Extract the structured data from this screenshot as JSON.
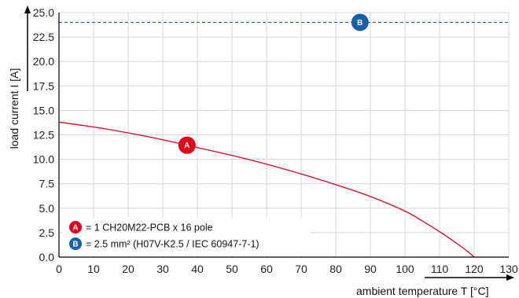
{
  "chart_data": {
    "type": "line",
    "xlabel": "ambient temperature T [°C]",
    "ylabel": "load current I [A]",
    "xlim": [
      0,
      130
    ],
    "ylim": [
      0,
      25
    ],
    "x_ticks": [
      0,
      10,
      20,
      30,
      40,
      50,
      60,
      70,
      80,
      90,
      100,
      110,
      120,
      130
    ],
    "y_ticks": [
      0.0,
      2.5,
      5.0,
      7.5,
      10.0,
      12.5,
      15.0,
      17.5,
      20.0,
      22.5,
      25.0
    ],
    "x_tick_labels": [
      "0",
      "10",
      "20",
      "30",
      "40",
      "50",
      "60",
      "70",
      "80",
      "90",
      "100",
      "110",
      "120",
      "130"
    ],
    "y_tick_labels": [
      "0.0",
      "2.5",
      "5.0",
      "7.5",
      "10.0",
      "12.5",
      "15.0",
      "17.5",
      "20.0",
      "22.5",
      "25.0"
    ],
    "grid": true,
    "series": [
      {
        "marker_label": "A",
        "color": "#e3001b",
        "style": "solid",
        "x": [
          0,
          10,
          20,
          30,
          40,
          50,
          60,
          70,
          80,
          90,
          100,
          105,
          110,
          115,
          118,
          120
        ],
        "y": [
          13.8,
          13.3,
          12.7,
          12.0,
          11.2,
          10.4,
          9.5,
          8.5,
          7.4,
          6.2,
          4.7,
          3.7,
          2.6,
          1.4,
          0.6,
          0.0
        ],
        "marker_x": 37
      },
      {
        "marker_label": "B",
        "color": "#1a5fa8",
        "style": "dashed",
        "x": [
          0,
          130
        ],
        "y": [
          24.0,
          24.0
        ],
        "marker_x": 87
      }
    ],
    "legend": [
      {
        "badge": "A",
        "color": "#e3001b",
        "text": "= 1 CH20M22-PCB x 16 pole"
      },
      {
        "badge": "B",
        "color": "#1a5fa8",
        "text": "= 2.5 mm² (H07V-K2.5 / IEC 60947-7-1)"
      }
    ]
  }
}
